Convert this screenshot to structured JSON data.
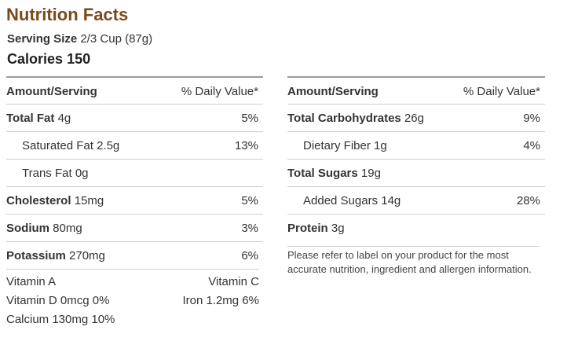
{
  "title": "Nutrition Facts",
  "serving": {
    "label": "Serving Size",
    "value": "2/3 Cup (87g)"
  },
  "calories": {
    "label": "Calories",
    "value": "150"
  },
  "left": {
    "header": {
      "amount": "Amount/Serving",
      "dv": "% Daily Value*"
    },
    "rows": [
      {
        "name": "Total Fat",
        "amount": "4g",
        "dv": "5%"
      },
      {
        "name": "Saturated Fat",
        "amount": "2.5g",
        "dv": "13%"
      },
      {
        "name": "Trans Fat",
        "amount": "0g",
        "dv": ""
      },
      {
        "name": "Cholesterol",
        "amount": "15mg",
        "dv": "5%"
      },
      {
        "name": "Sodium",
        "amount": "80mg",
        "dv": "3%"
      },
      {
        "name": "Potassium",
        "amount": "270mg",
        "dv": "6%"
      }
    ]
  },
  "right": {
    "header": {
      "amount": "Amount/Serving",
      "dv": "% Daily Value*"
    },
    "rows": [
      {
        "name": "Total Carbohydrates",
        "amount": "26g",
        "dv": "9%"
      },
      {
        "name": "Dietary Fiber",
        "amount": "1g",
        "dv": "4%"
      },
      {
        "name": "Total Sugars",
        "amount": "19g",
        "dv": ""
      },
      {
        "name": "Added Sugars",
        "amount": "14g",
        "dv": "28%"
      },
      {
        "name": "Protein",
        "amount": "3g",
        "dv": ""
      }
    ]
  },
  "vitamins": {
    "row1_left": "Vitamin A",
    "row1_right": "Vitamin C",
    "row2_left": "Vitamin D 0mcg 0%",
    "row2_right": "Iron 1.2mg 6%",
    "row3_left": "Calcium 130mg 10%"
  },
  "disclaimer": "Please refer to label on your product for the most accurate nutrition, ingredient and allergen information.",
  "colors": {
    "title": "#7a4a1c",
    "text": "#333333",
    "rule": "#cfcfcf"
  }
}
